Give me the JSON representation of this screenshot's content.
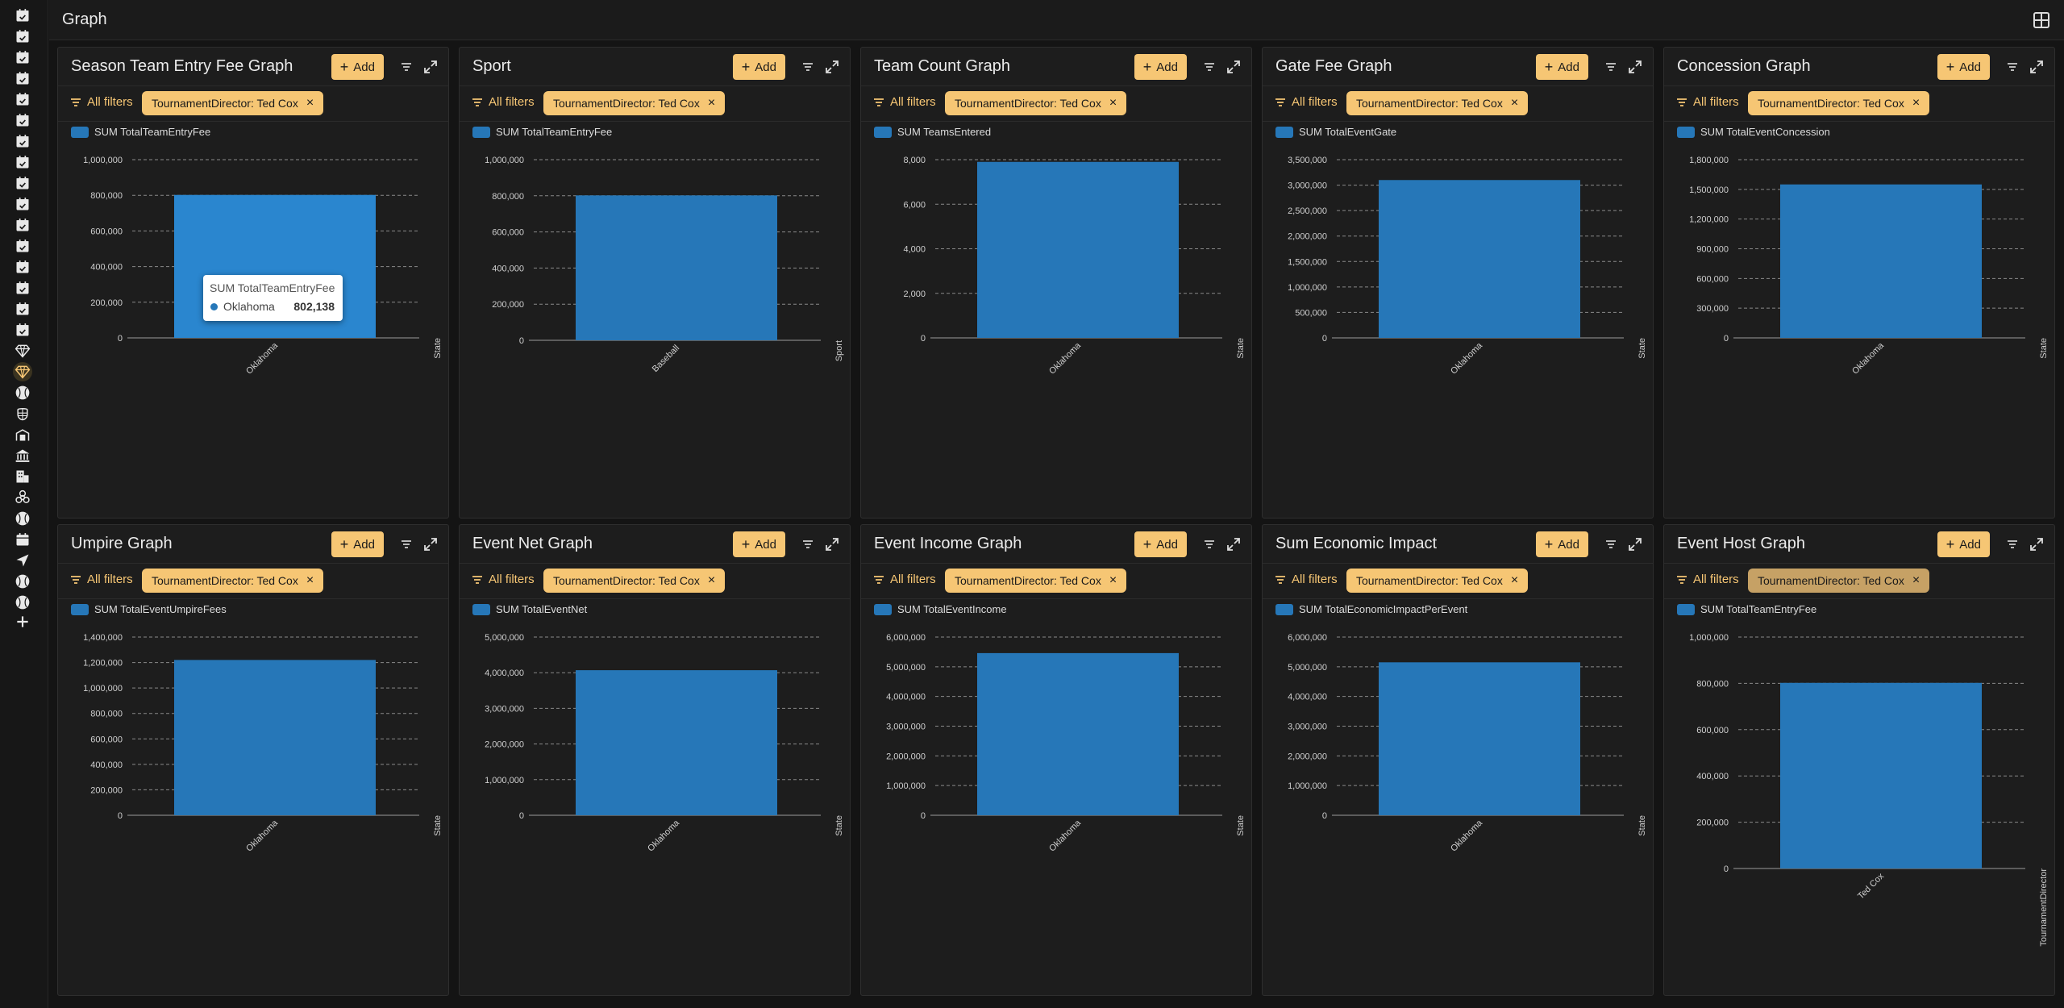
{
  "app": {
    "page_title": "Graph"
  },
  "sidebar": {
    "items": [
      {
        "icon": "calendar-check-icon"
      },
      {
        "icon": "calendar-check-icon"
      },
      {
        "icon": "calendar-check-icon"
      },
      {
        "icon": "calendar-check-icon"
      },
      {
        "icon": "calendar-check-icon"
      },
      {
        "icon": "calendar-check-icon"
      },
      {
        "icon": "calendar-check-icon"
      },
      {
        "icon": "calendar-check-icon"
      },
      {
        "icon": "calendar-check-icon"
      },
      {
        "icon": "calendar-check-icon"
      },
      {
        "icon": "calendar-check-icon"
      },
      {
        "icon": "calendar-check-icon"
      },
      {
        "icon": "calendar-check-icon"
      },
      {
        "icon": "calendar-check-icon"
      },
      {
        "icon": "calendar-check-icon"
      },
      {
        "icon": "calendar-check-icon"
      },
      {
        "icon": "diamond-icon"
      },
      {
        "icon": "diamond-icon",
        "active": true
      },
      {
        "icon": "baseball-icon"
      },
      {
        "icon": "umpire-mask-icon"
      },
      {
        "icon": "stadium-icon"
      },
      {
        "icon": "bank-icon"
      },
      {
        "icon": "hotel-icon"
      },
      {
        "icon": "biohazard-icon"
      },
      {
        "icon": "baseball-icon"
      },
      {
        "icon": "calendar-icon"
      },
      {
        "icon": "navigation-arrow-icon"
      },
      {
        "icon": "baseball-icon"
      },
      {
        "icon": "baseball-icon"
      },
      {
        "icon": "plus-icon"
      }
    ]
  },
  "accent_color": "#f6c674",
  "bar_color": "#2677b8",
  "common": {
    "add_label": "Add",
    "all_filters_label": "All filters",
    "filter_chip": "TournamentDirector: Ted Cox"
  },
  "panels": [
    {
      "title": "Season Team Entry Fee Graph",
      "legend": "SUM TotalTeamEntryFee",
      "tooltip": {
        "title": "SUM TotalTeamEntryFee",
        "label": "Oklahoma",
        "value": "802,138"
      }
    },
    {
      "title": "Sport",
      "legend": "SUM TotalTeamEntryFee"
    },
    {
      "title": "Team Count Graph",
      "legend": "SUM TeamsEntered"
    },
    {
      "title": "Gate Fee Graph",
      "legend": "SUM TotalEventGate"
    },
    {
      "title": "Concession Graph",
      "legend": "SUM TotalEventConcession"
    },
    {
      "title": "Umpire Graph",
      "legend": "SUM TotalEventUmpireFees"
    },
    {
      "title": "Event Net Graph",
      "legend": "SUM TotalEventNet"
    },
    {
      "title": "Event Income Graph",
      "legend": "SUM TotalEventIncome"
    },
    {
      "title": "Sum Economic Impact",
      "legend": "SUM TotalEconomicImpactPerEvent"
    },
    {
      "title": "Event Host Graph",
      "legend": "SUM TotalTeamEntryFee",
      "chip_dim": true
    }
  ],
  "chart_data": [
    {
      "type": "bar",
      "categories": [
        "Oklahoma"
      ],
      "series": [
        {
          "name": "SUM TotalTeamEntryFee",
          "values": [
            802138
          ]
        }
      ],
      "xlabel": "State",
      "ylim": [
        0,
        1000000
      ],
      "yticks": [
        0,
        200000,
        400000,
        600000,
        800000,
        1000000
      ],
      "ytick_labels": [
        "0",
        "200,000",
        "400,000",
        "600,000",
        "800,000",
        "1,000,000"
      ],
      "grid": true
    },
    {
      "type": "bar",
      "categories": [
        "Baseball"
      ],
      "series": [
        {
          "name": "SUM TotalTeamEntryFee",
          "values": [
            802138
          ]
        }
      ],
      "xlabel": "Sport",
      "ylim": [
        0,
        1000000
      ],
      "yticks": [
        0,
        200000,
        400000,
        600000,
        800000,
        1000000
      ],
      "ytick_labels": [
        "0",
        "200,000",
        "400,000",
        "600,000",
        "800,000",
        "1,000,000"
      ],
      "grid": true
    },
    {
      "type": "bar",
      "categories": [
        "Oklahoma"
      ],
      "series": [
        {
          "name": "SUM TeamsEntered",
          "values": [
            7900
          ]
        }
      ],
      "xlabel": "State",
      "ylim": [
        0,
        8000
      ],
      "yticks": [
        0,
        2000,
        4000,
        6000,
        8000
      ],
      "ytick_labels": [
        "0",
        "2,000",
        "4,000",
        "6,000",
        "8,000"
      ],
      "grid": true
    },
    {
      "type": "bar",
      "categories": [
        "Oklahoma"
      ],
      "series": [
        {
          "name": "SUM TotalEventGate",
          "values": [
            3100000
          ]
        }
      ],
      "xlabel": "State",
      "ylim": [
        0,
        3500000
      ],
      "yticks": [
        0,
        500000,
        1000000,
        1500000,
        2000000,
        2500000,
        3000000,
        3500000
      ],
      "ytick_labels": [
        "0",
        "500,000",
        "1,000,000",
        "1,500,000",
        "2,000,000",
        "2,500,000",
        "3,000,000",
        "3,500,000"
      ],
      "grid": true
    },
    {
      "type": "bar",
      "categories": [
        "Oklahoma"
      ],
      "series": [
        {
          "name": "SUM TotalEventConcession",
          "values": [
            1550000
          ]
        }
      ],
      "xlabel": "State",
      "ylim": [
        0,
        1800000
      ],
      "yticks": [
        0,
        300000,
        600000,
        900000,
        1200000,
        1500000,
        1800000
      ],
      "ytick_labels": [
        "0",
        "300,000",
        "600,000",
        "900,000",
        "1,200,000",
        "1,500,000",
        "1,800,000"
      ],
      "grid": true
    },
    {
      "type": "bar",
      "categories": [
        "Oklahoma"
      ],
      "series": [
        {
          "name": "SUM TotalEventUmpireFees",
          "values": [
            1220000
          ]
        }
      ],
      "xlabel": "State",
      "ylim": [
        0,
        1400000
      ],
      "yticks": [
        0,
        200000,
        400000,
        600000,
        800000,
        1000000,
        1200000,
        1400000
      ],
      "ytick_labels": [
        "0",
        "200,000",
        "400,000",
        "600,000",
        "800,000",
        "1,000,000",
        "1,200,000",
        "1,400,000"
      ],
      "grid": true
    },
    {
      "type": "bar",
      "categories": [
        "Oklahoma"
      ],
      "series": [
        {
          "name": "SUM TotalEventNet",
          "values": [
            4070000
          ]
        }
      ],
      "xlabel": "State",
      "ylim": [
        0,
        5000000
      ],
      "yticks": [
        0,
        1000000,
        2000000,
        3000000,
        4000000,
        5000000
      ],
      "ytick_labels": [
        "0",
        "1,000,000",
        "2,000,000",
        "3,000,000",
        "4,000,000",
        "5,000,000"
      ],
      "grid": true
    },
    {
      "type": "bar",
      "categories": [
        "Oklahoma"
      ],
      "series": [
        {
          "name": "SUM TotalEventIncome",
          "values": [
            5460000
          ]
        }
      ],
      "xlabel": "State",
      "ylim": [
        0,
        6000000
      ],
      "yticks": [
        0,
        1000000,
        2000000,
        3000000,
        4000000,
        5000000,
        6000000
      ],
      "ytick_labels": [
        "0",
        "1,000,000",
        "2,000,000",
        "3,000,000",
        "4,000,000",
        "5,000,000",
        "6,000,000"
      ],
      "grid": true
    },
    {
      "type": "bar",
      "categories": [
        "Oklahoma"
      ],
      "series": [
        {
          "name": "SUM TotalEconomicImpactPerEvent",
          "values": [
            5150000
          ]
        }
      ],
      "xlabel": "State",
      "ylim": [
        0,
        6000000
      ],
      "yticks": [
        0,
        1000000,
        2000000,
        3000000,
        4000000,
        5000000,
        6000000
      ],
      "ytick_labels": [
        "0",
        "1,000,000",
        "2,000,000",
        "3,000,000",
        "4,000,000",
        "5,000,000",
        "6,000,000"
      ],
      "grid": true
    },
    {
      "type": "bar",
      "categories": [
        "Ted Cox"
      ],
      "series": [
        {
          "name": "SUM TotalTeamEntryFee",
          "values": [
            802138
          ]
        }
      ],
      "xlabel": "TournamentDirector",
      "ylim": [
        0,
        1000000
      ],
      "yticks": [
        0,
        200000,
        400000,
        600000,
        800000,
        1000000
      ],
      "ytick_labels": [
        "0",
        "200,000",
        "400,000",
        "600,000",
        "800,000",
        "1,000,000"
      ],
      "grid": true
    }
  ]
}
